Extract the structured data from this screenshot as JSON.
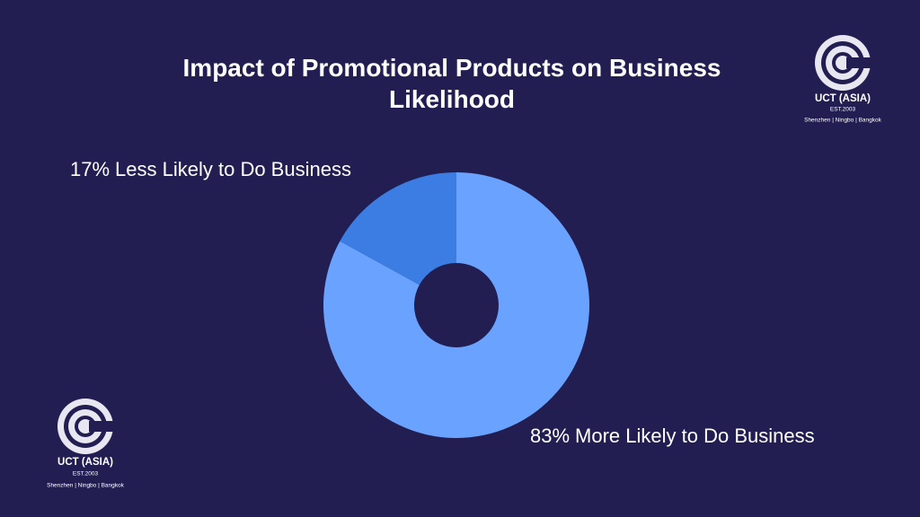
{
  "chart_data": {
    "type": "pie",
    "title": "Impact of Promotional Products on Business Likelihood",
    "categories": [
      "Less Likely to Do Business",
      "More Likely to Do Business"
    ],
    "values": [
      17,
      83
    ],
    "value_labels": [
      "17%",
      "83%"
    ],
    "colors": [
      "#3b7de2",
      "#6aa3ff"
    ],
    "donut": true
  },
  "logos": [
    {
      "name": "UCT (ASIA)",
      "established": "EST.2003",
      "locations": "Shenzhen | Ningbo | Bangkok"
    },
    {
      "name": "UCT (ASIA)",
      "established": "EST.2003",
      "locations": "Shenzhen | Ningbo | Bangkok"
    }
  ]
}
